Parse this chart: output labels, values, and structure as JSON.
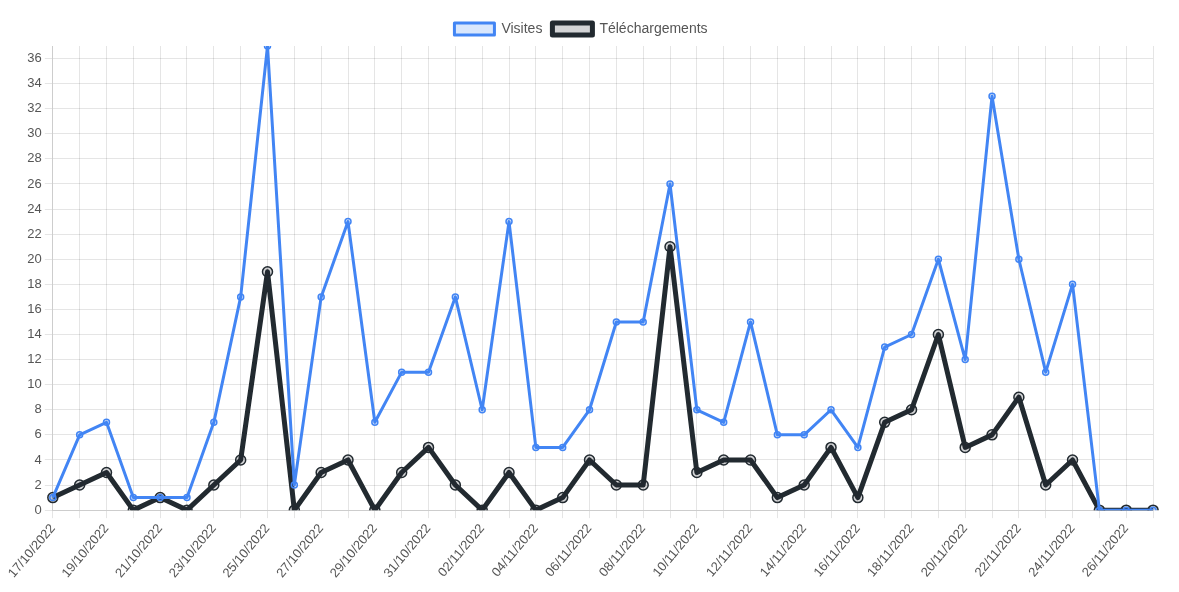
{
  "chart_data": {
    "type": "line",
    "categories": [
      "17/10/2022",
      null,
      "19/10/2022",
      null,
      "21/10/2022",
      null,
      "23/10/2022",
      null,
      "25/10/2022",
      null,
      "27/10/2022",
      null,
      "29/10/2022",
      null,
      "31/10/2022",
      null,
      "02/11/2022",
      null,
      "04/11/2022",
      null,
      "06/11/2022",
      null,
      "08/11/2022",
      null,
      "10/11/2022",
      null,
      "12/11/2022",
      null,
      "14/11/2022",
      null,
      "16/11/2022",
      null,
      "18/11/2022",
      null,
      "20/11/2022",
      null,
      "22/11/2022",
      null,
      "24/11/2022",
      null,
      "26/11/2022",
      null
    ],
    "series": [
      {
        "name": "Visites",
        "color": "#4285f4",
        "values": [
          1,
          6,
          7,
          1,
          1,
          1,
          7,
          17,
          37,
          2,
          17,
          23,
          7,
          11,
          11,
          17,
          8,
          23,
          5,
          5,
          8,
          15,
          15,
          26,
          8,
          7,
          15,
          6,
          6,
          8,
          5,
          13,
          14,
          20,
          12,
          33,
          20,
          11,
          18,
          0,
          0,
          0
        ]
      },
      {
        "name": "Téléchargements",
        "color": "#222a30",
        "values": [
          1,
          2,
          3,
          0,
          1,
          0,
          2,
          4,
          19,
          0,
          3,
          4,
          0,
          3,
          5,
          2,
          0,
          3,
          0,
          1,
          4,
          2,
          2,
          21,
          3,
          4,
          4,
          1,
          2,
          5,
          1,
          7,
          8,
          14,
          5,
          6,
          9,
          2,
          4,
          0,
          0,
          0
        ]
      }
    ],
    "ylim": [
      0,
      37
    ],
    "yticks": [
      0,
      2,
      4,
      6,
      8,
      10,
      12,
      14,
      16,
      18,
      20,
      22,
      24,
      26,
      28,
      30,
      32,
      34,
      36
    ],
    "grid": true,
    "legend": "top",
    "marker": "circle",
    "line_style": "solid"
  }
}
